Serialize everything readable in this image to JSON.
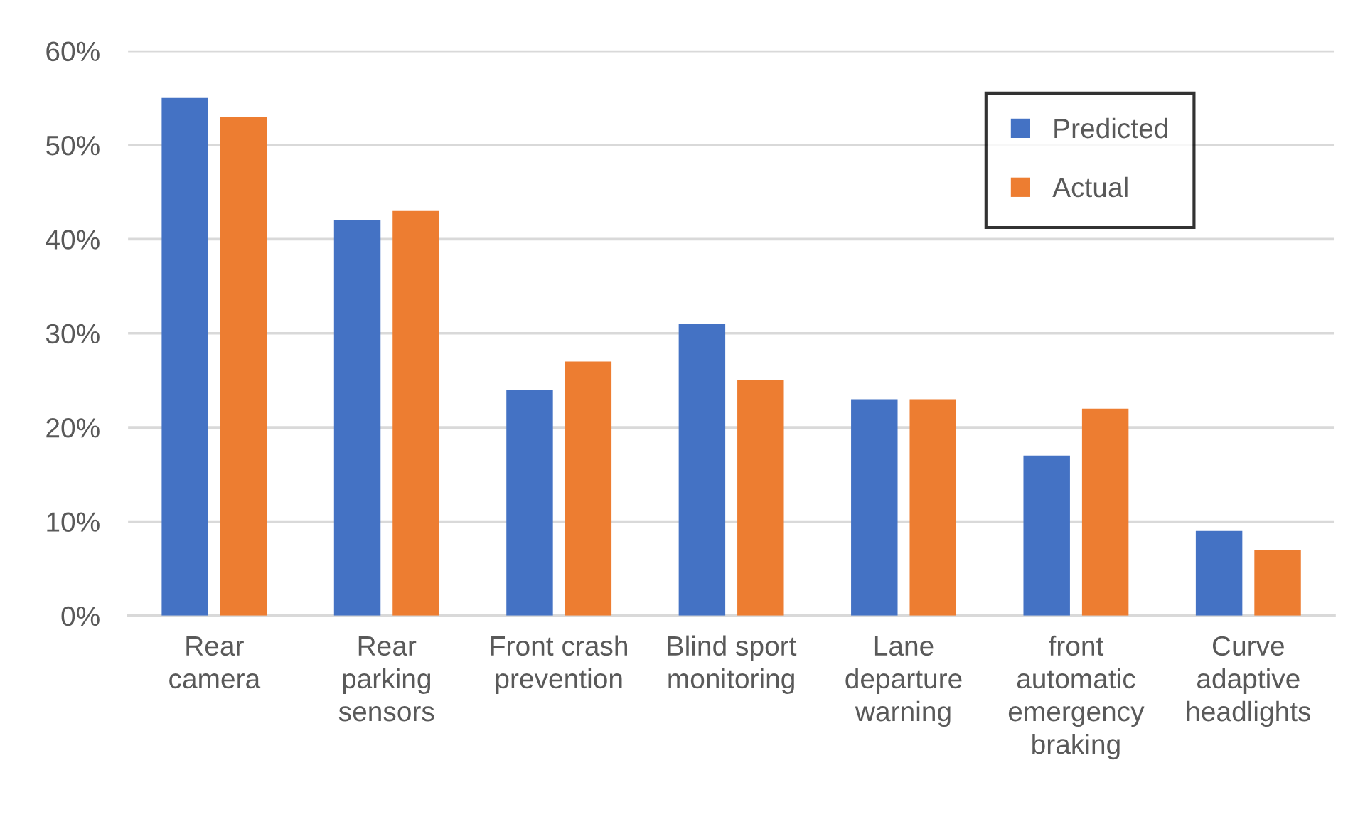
{
  "chart_data": {
    "type": "bar",
    "categories": [
      "Rear\ncamera",
      "Rear\nparking\nsensors",
      "Front crash\nprevention",
      "Blind sport\nmonitoring",
      "Lane\ndeparture\nwarning",
      "front\nautomatic\nemergency\nbraking",
      "Curve\nadaptive\nheadlights"
    ],
    "series": [
      {
        "name": "Predicted",
        "color": "#4472c4",
        "values": [
          55,
          42,
          24,
          31,
          23,
          17,
          9
        ]
      },
      {
        "name": "Actual",
        "color": "#ed7d31",
        "values": [
          53,
          43,
          27,
          25,
          23,
          22,
          7
        ]
      }
    ],
    "ylim": [
      0,
      60
    ],
    "yticks": [
      {
        "value": 0,
        "label": "0%"
      },
      {
        "value": 10,
        "label": "10%"
      },
      {
        "value": 20,
        "label": "20%"
      },
      {
        "value": 30,
        "label": "30%"
      },
      {
        "value": 40,
        "label": "40%"
      },
      {
        "value": 50,
        "label": "50%"
      },
      {
        "value": 60,
        "label": "60%"
      }
    ],
    "grid": "y",
    "legend": "top right"
  }
}
